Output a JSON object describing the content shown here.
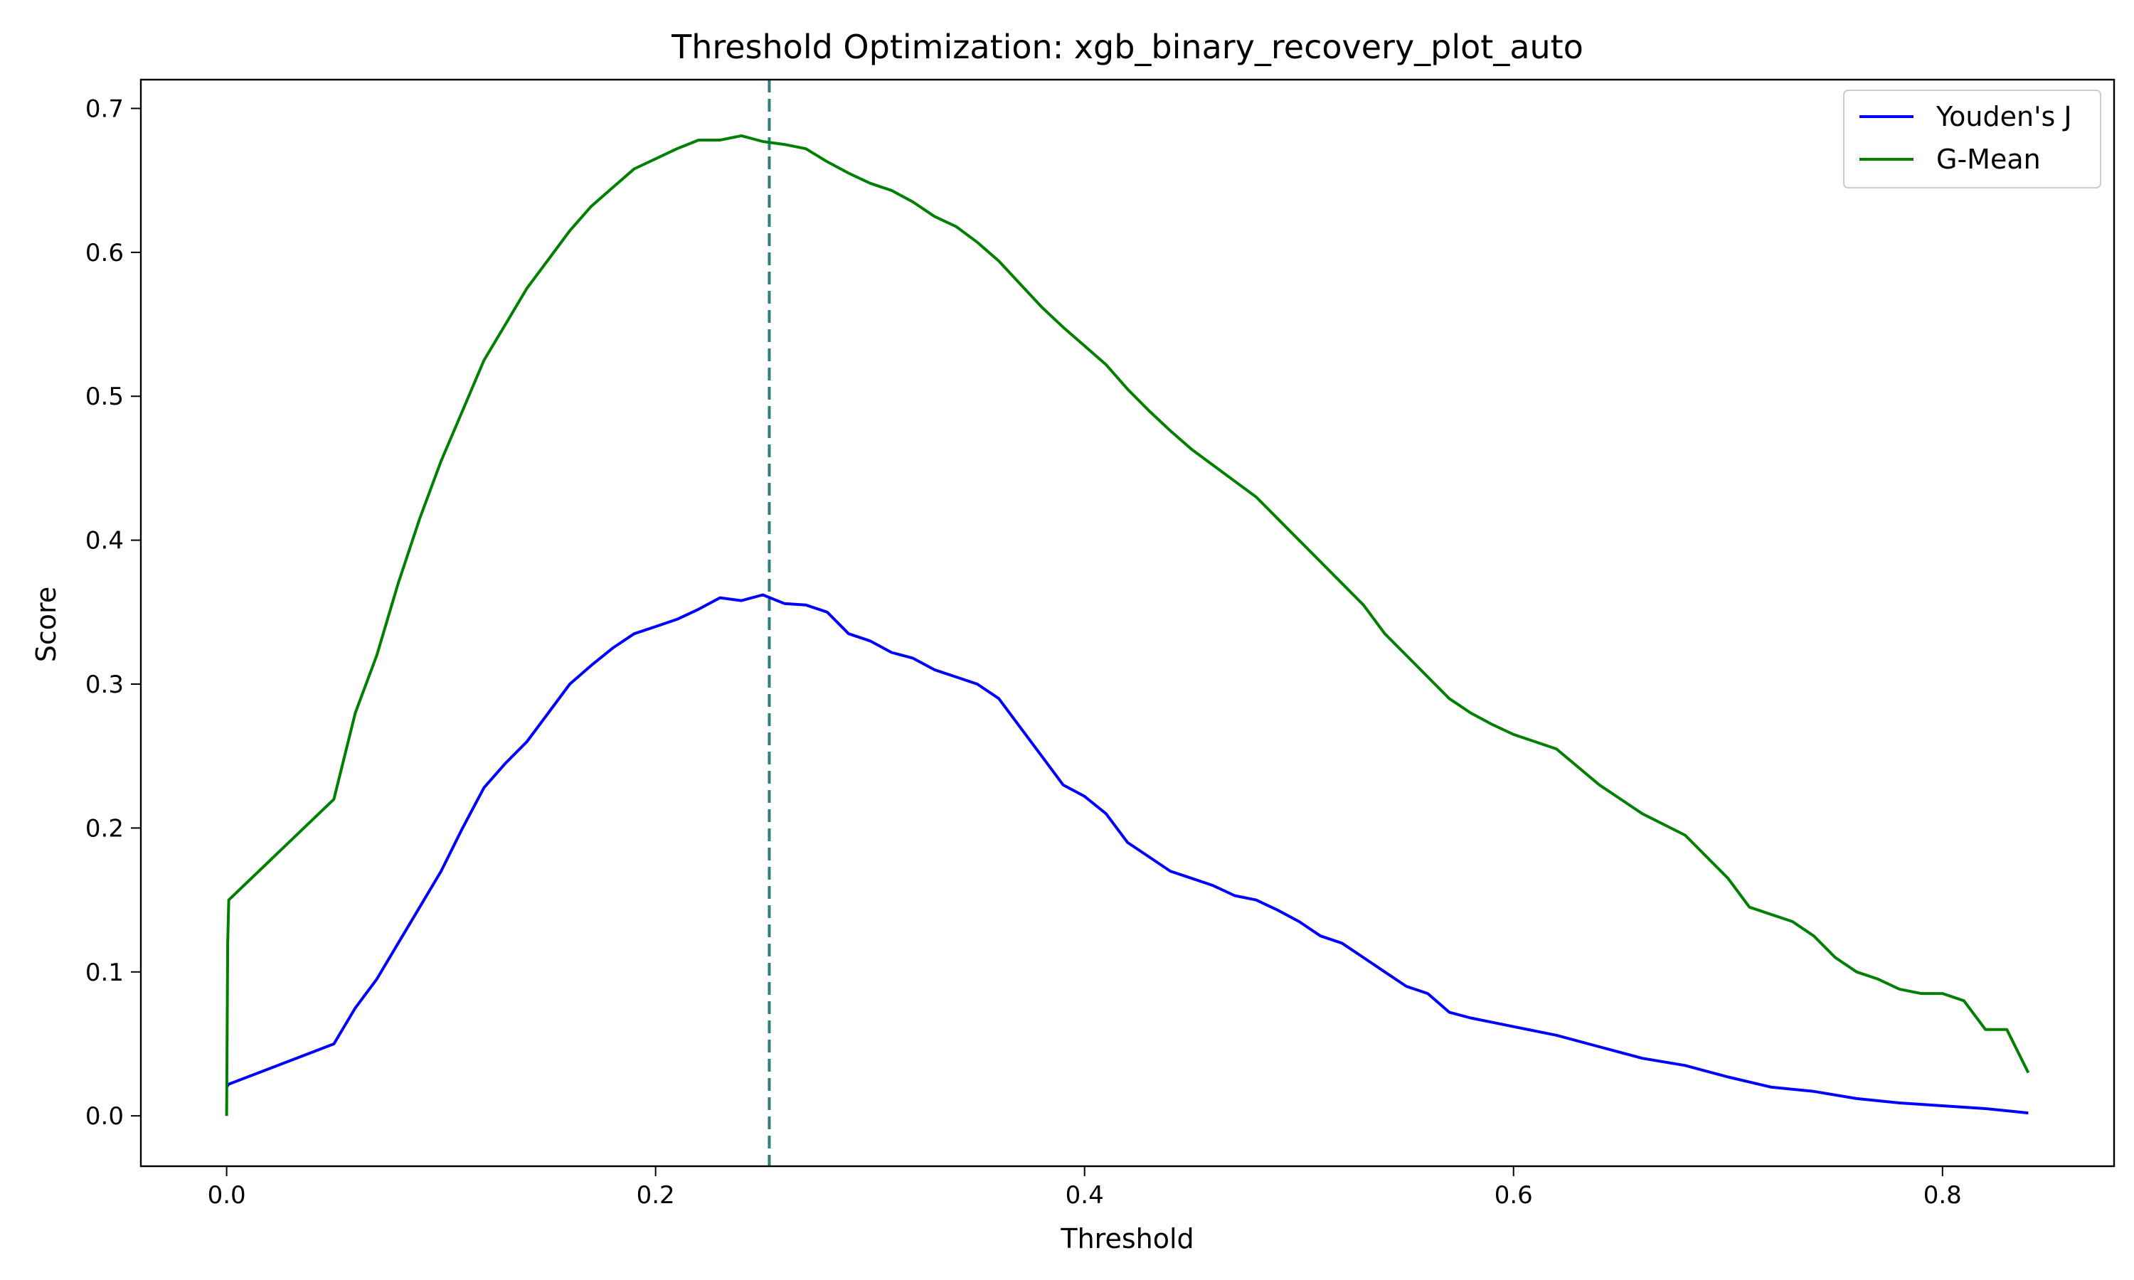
{
  "chart_data": {
    "type": "line",
    "title": "Threshold Optimization: xgb_binary_recovery_plot_auto",
    "xlabel": "Threshold",
    "ylabel": "Score",
    "xlim": [
      -0.1,
      2.2
    ],
    "ylim": [
      -0.1,
      0.72
    ],
    "x_ticks": [
      0.0,
      0.2,
      0.4,
      0.6,
      0.8
    ],
    "x_tick_labels": [
      "0.0",
      "0.2",
      "0.4",
      "0.6",
      "0.8"
    ],
    "y_ticks": [
      0.0,
      0.1,
      0.2,
      0.3,
      0.4,
      0.5,
      0.6,
      0.7
    ],
    "y_tick_labels": [
      "0.0",
      "0.1",
      "0.2",
      "0.3",
      "0.4",
      "0.5",
      "0.6",
      "0.7"
    ],
    "optimal_threshold": 0.253,
    "grid": false,
    "legend_position": "top-right",
    "series": [
      {
        "name": "Youden's J",
        "color": "#0000ff",
        "x": [
          0.0,
          0.001,
          0.05,
          0.06,
          0.07,
          0.08,
          0.09,
          0.1,
          0.11,
          0.12,
          0.13,
          0.14,
          0.15,
          0.16,
          0.17,
          0.18,
          0.19,
          0.2,
          0.21,
          0.22,
          0.23,
          0.24,
          0.25,
          0.26,
          0.27,
          0.28,
          0.29,
          0.3,
          0.31,
          0.32,
          0.33,
          0.34,
          0.35,
          0.36,
          0.37,
          0.38,
          0.39,
          0.4,
          0.41,
          0.42,
          0.43,
          0.44,
          0.45,
          0.46,
          0.47,
          0.48,
          0.49,
          0.5,
          0.51,
          0.52,
          0.53,
          0.54,
          0.55,
          0.56,
          0.57,
          0.58,
          0.59,
          0.6,
          0.62,
          0.64,
          0.66,
          0.68,
          0.7,
          0.72,
          0.74,
          0.76,
          0.78,
          0.8,
          0.82,
          0.84
        ],
        "values": [
          0.02,
          0.022,
          0.05,
          0.075,
          0.095,
          0.12,
          0.145,
          0.17,
          0.2,
          0.228,
          0.245,
          0.26,
          0.28,
          0.3,
          0.313,
          0.325,
          0.335,
          0.34,
          0.345,
          0.352,
          0.36,
          0.358,
          0.362,
          0.356,
          0.355,
          0.35,
          0.335,
          0.33,
          0.322,
          0.318,
          0.31,
          0.305,
          0.3,
          0.29,
          0.27,
          0.25,
          0.23,
          0.222,
          0.21,
          0.19,
          0.18,
          0.17,
          0.165,
          0.16,
          0.153,
          0.15,
          0.143,
          0.135,
          0.125,
          0.12,
          0.11,
          0.1,
          0.09,
          0.085,
          0.072,
          0.068,
          0.065,
          0.062,
          0.056,
          0.048,
          0.04,
          0.035,
          0.027,
          0.02,
          0.017,
          0.012,
          0.009,
          0.007,
          0.005,
          0.002
        ]
      },
      {
        "name": "G-Mean",
        "color": "#008000",
        "x": [
          0.0,
          0.0005,
          0.001,
          0.05,
          0.06,
          0.07,
          0.08,
          0.09,
          0.1,
          0.11,
          0.12,
          0.13,
          0.14,
          0.15,
          0.16,
          0.17,
          0.18,
          0.19,
          0.2,
          0.21,
          0.22,
          0.23,
          0.24,
          0.25,
          0.26,
          0.27,
          0.28,
          0.29,
          0.3,
          0.31,
          0.32,
          0.33,
          0.34,
          0.35,
          0.36,
          0.37,
          0.38,
          0.39,
          0.4,
          0.41,
          0.42,
          0.43,
          0.44,
          0.45,
          0.46,
          0.47,
          0.48,
          0.49,
          0.5,
          0.51,
          0.52,
          0.53,
          0.54,
          0.55,
          0.56,
          0.57,
          0.58,
          0.59,
          0.6,
          0.62,
          0.64,
          0.66,
          0.68,
          0.7,
          0.71,
          0.72,
          0.73,
          0.74,
          0.75,
          0.76,
          0.77,
          0.78,
          0.79,
          0.8,
          0.81,
          0.82,
          0.83,
          0.84
        ],
        "values": [
          0.0,
          0.12,
          0.15,
          0.22,
          0.28,
          0.32,
          0.37,
          0.415,
          0.455,
          0.49,
          0.525,
          0.55,
          0.575,
          0.595,
          0.615,
          0.632,
          0.645,
          0.658,
          0.665,
          0.672,
          0.678,
          0.678,
          0.681,
          0.677,
          0.675,
          0.672,
          0.663,
          0.655,
          0.648,
          0.643,
          0.635,
          0.625,
          0.618,
          0.607,
          0.594,
          0.578,
          0.562,
          0.548,
          0.535,
          0.522,
          0.505,
          0.49,
          0.476,
          0.463,
          0.452,
          0.441,
          0.43,
          0.415,
          0.4,
          0.385,
          0.37,
          0.355,
          0.335,
          0.32,
          0.305,
          0.29,
          0.28,
          0.272,
          0.265,
          0.255,
          0.23,
          0.21,
          0.195,
          0.165,
          0.145,
          0.14,
          0.135,
          0.125,
          0.11,
          0.1,
          0.095,
          0.088,
          0.085,
          0.085,
          0.08,
          0.06,
          0.06,
          0.03
        ]
      }
    ]
  }
}
